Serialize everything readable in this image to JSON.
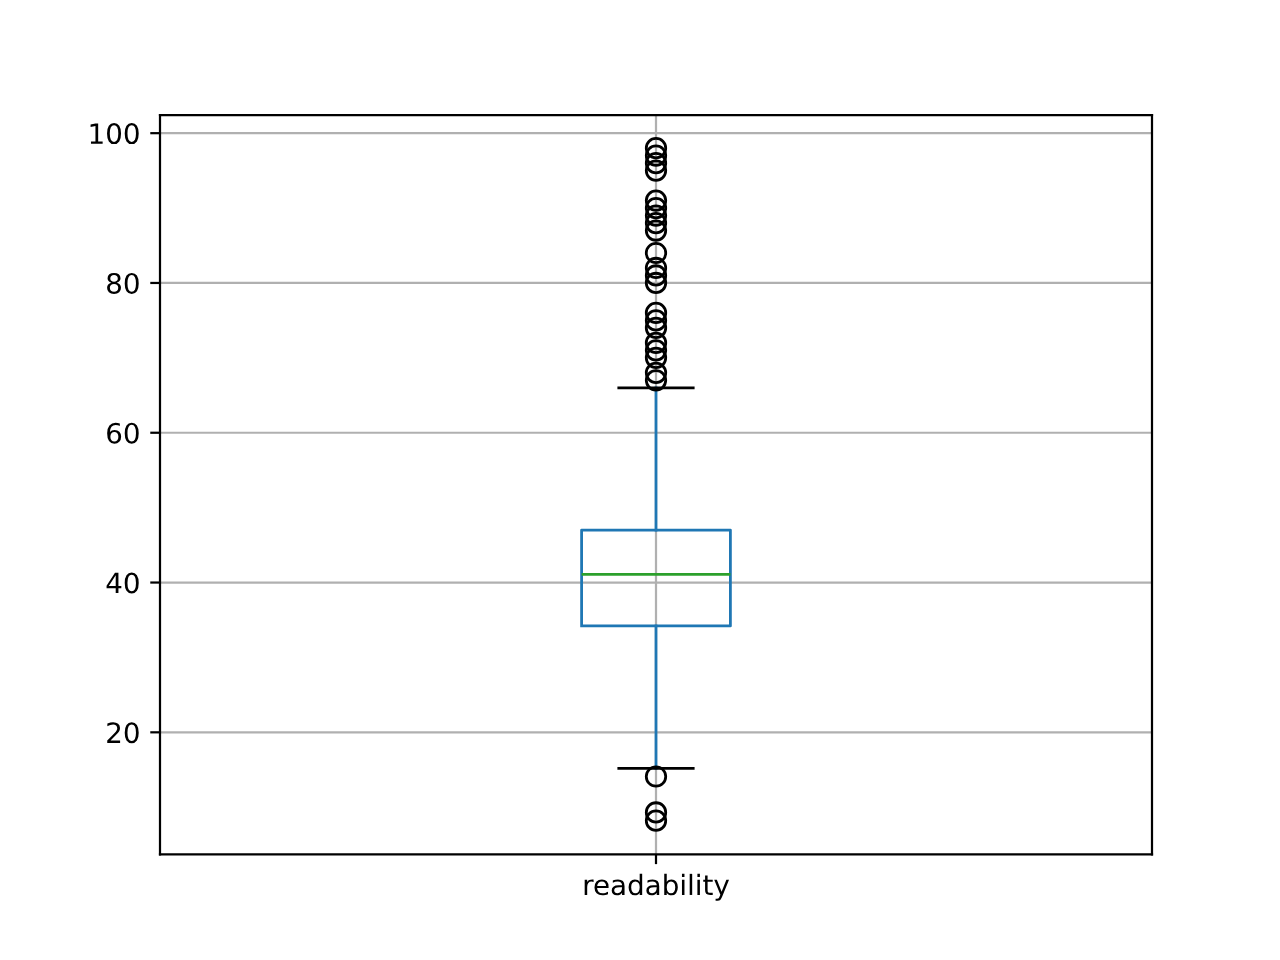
{
  "chart_data": {
    "type": "box",
    "categories": [
      "readability"
    ],
    "boxes": [
      {
        "low": 15.2,
        "q1": 34.2,
        "median": 41.1,
        "q3": 47.0,
        "high": 66.0,
        "outliers": [
          8.2,
          9.3,
          14.1,
          67,
          68,
          70,
          71,
          72,
          74,
          75,
          76,
          80,
          81,
          82,
          84,
          87,
          88,
          89,
          90,
          91,
          95,
          96,
          97,
          98
        ]
      }
    ],
    "ylim": [
      3.7,
      102.4
    ],
    "yticks": [
      20,
      40,
      60,
      80,
      100
    ],
    "grid": true
  }
}
